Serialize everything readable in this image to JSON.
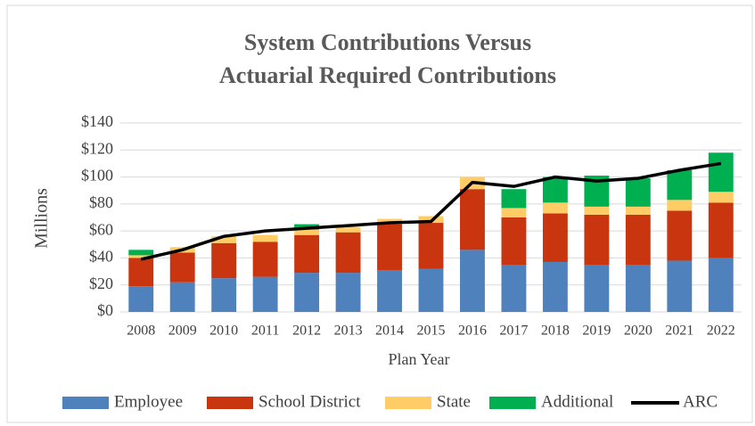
{
  "chart_data": {
    "type": "bar",
    "stacked": true,
    "title": [
      "System Contributions Versus",
      "Actuarial Required Contributions"
    ],
    "ylabel": "Millions",
    "xlabel": "Plan Year",
    "categories": [
      "2008",
      "2009",
      "2010",
      "2011",
      "2012",
      "2013",
      "2014",
      "2015",
      "2016",
      "2017",
      "2018",
      "2019",
      "2020",
      "2021",
      "2022"
    ],
    "series": [
      {
        "name": "Employee",
        "color": "#4f81bd",
        "values": [
          19,
          22,
          25,
          26,
          29,
          29,
          31,
          32,
          46,
          35,
          37,
          35,
          35,
          38,
          40
        ]
      },
      {
        "name": "School District",
        "color": "#c9350e",
        "values": [
          21,
          22,
          26,
          26,
          28,
          30,
          34,
          34,
          45,
          35,
          36,
          37,
          37,
          37,
          41
        ]
      },
      {
        "name": "State",
        "color": "#ffcc66",
        "values": [
          2,
          4,
          5,
          5,
          4,
          4,
          4,
          5,
          9,
          7,
          8,
          6,
          6,
          8,
          8
        ]
      },
      {
        "name": "Additional",
        "color": "#00b050",
        "values": [
          4,
          0,
          0,
          0,
          4,
          0,
          0,
          0,
          0,
          14,
          19,
          23,
          21,
          22,
          29
        ]
      },
      {
        "name": "ARC",
        "color": "#000000",
        "type": "line",
        "values": [
          39,
          46,
          56,
          60,
          62,
          64,
          66,
          67,
          96,
          93,
          100,
          97,
          99,
          105,
          110
        ]
      }
    ],
    "ylim": [
      0,
      140
    ],
    "yticks": [
      {
        "value": 0,
        "label": "$0"
      },
      {
        "value": 20,
        "label": "$20"
      },
      {
        "value": 40,
        "label": "$40"
      },
      {
        "value": 60,
        "label": "$60"
      },
      {
        "value": 80,
        "label": "$80"
      },
      {
        "value": 100,
        "label": "$100"
      },
      {
        "value": 120,
        "label": "$120"
      },
      {
        "value": 140,
        "label": "$140"
      }
    ],
    "grid": true,
    "legend": "bottom"
  }
}
